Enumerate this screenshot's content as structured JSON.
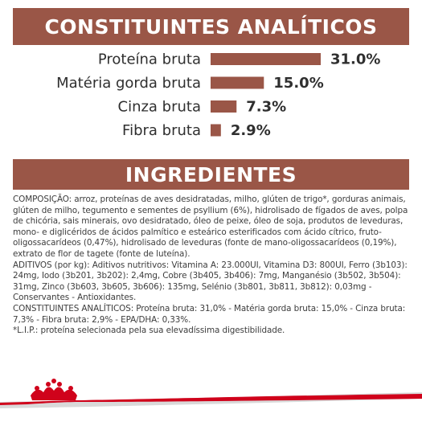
{
  "headers": {
    "analytic": "CONSTITUINTES ANALÍTICOS",
    "ingredients": "INGREDIENTES"
  },
  "chart_data": {
    "type": "bar",
    "orientation": "horizontal",
    "categories": [
      "Proteína bruta",
      "Matéria gorda bruta",
      "Cinza bruta",
      "Fibra bruta"
    ],
    "values": [
      31.0,
      15.0,
      7.3,
      2.9
    ],
    "value_labels": [
      "31.0%",
      "15.0%",
      "7.3%",
      "2.9%"
    ],
    "xlim": [
      0,
      31.0
    ],
    "bar_color": "#9a5647",
    "grid": false,
    "legend": "none"
  },
  "ingredients": {
    "paragraphs": [
      "COMPOSIÇÃO: arroz, proteínas de aves desidratadas, milho, glúten de trigo*, gorduras animais, glúten de milho, tegumento e sementes de psyllium (6%), hidrolisado de fígados de aves, polpa de chicória, sais minerais, ovo desidratado, óleo de peixe, óleo de soja, produtos de leveduras, mono- e diglicéridos de ácidos palmítico e esteárico esterificados com ácido cítrico, fruto-oligossacarídeos (0,47%), hidrolisado de leveduras (fonte de mano-oligossacarídeos (0,19%), extrato de flor de tagete (fonte de luteína).",
      "ADITIVOS (por kg): Aditivos nutritivos: Vitamina A: 23.000UI, Vitamina D3: 800UI, Ferro (3b103): 24mg, Iodo (3b201, 3b202): 2,4mg, Cobre (3b405, 3b406): 7mg, Manganésio (3b502, 3b504): 31mg, Zinco (3b603, 3b605, 3b606): 135mg, Selénio (3b801, 3b811, 3b812): 0,03mg - Conservantes - Antioxidantes.",
      "CONSTITUINTES ANALÍTICOS: Proteína bruta: 31,0% - Matéria gorda bruta: 15,0% - Cinza bruta: 7,3% - Fibra bruta: 2,9% - EPA/DHA: 0,33%.",
      "*L.I.P.: proteína selecionada pela sua elevadíssima digestibilidade."
    ]
  },
  "colors": {
    "brand": "#9a5647",
    "footer_red": "#d0021b",
    "footer_gray": "#d9d9d9"
  },
  "logo": "royal-crown-icon"
}
